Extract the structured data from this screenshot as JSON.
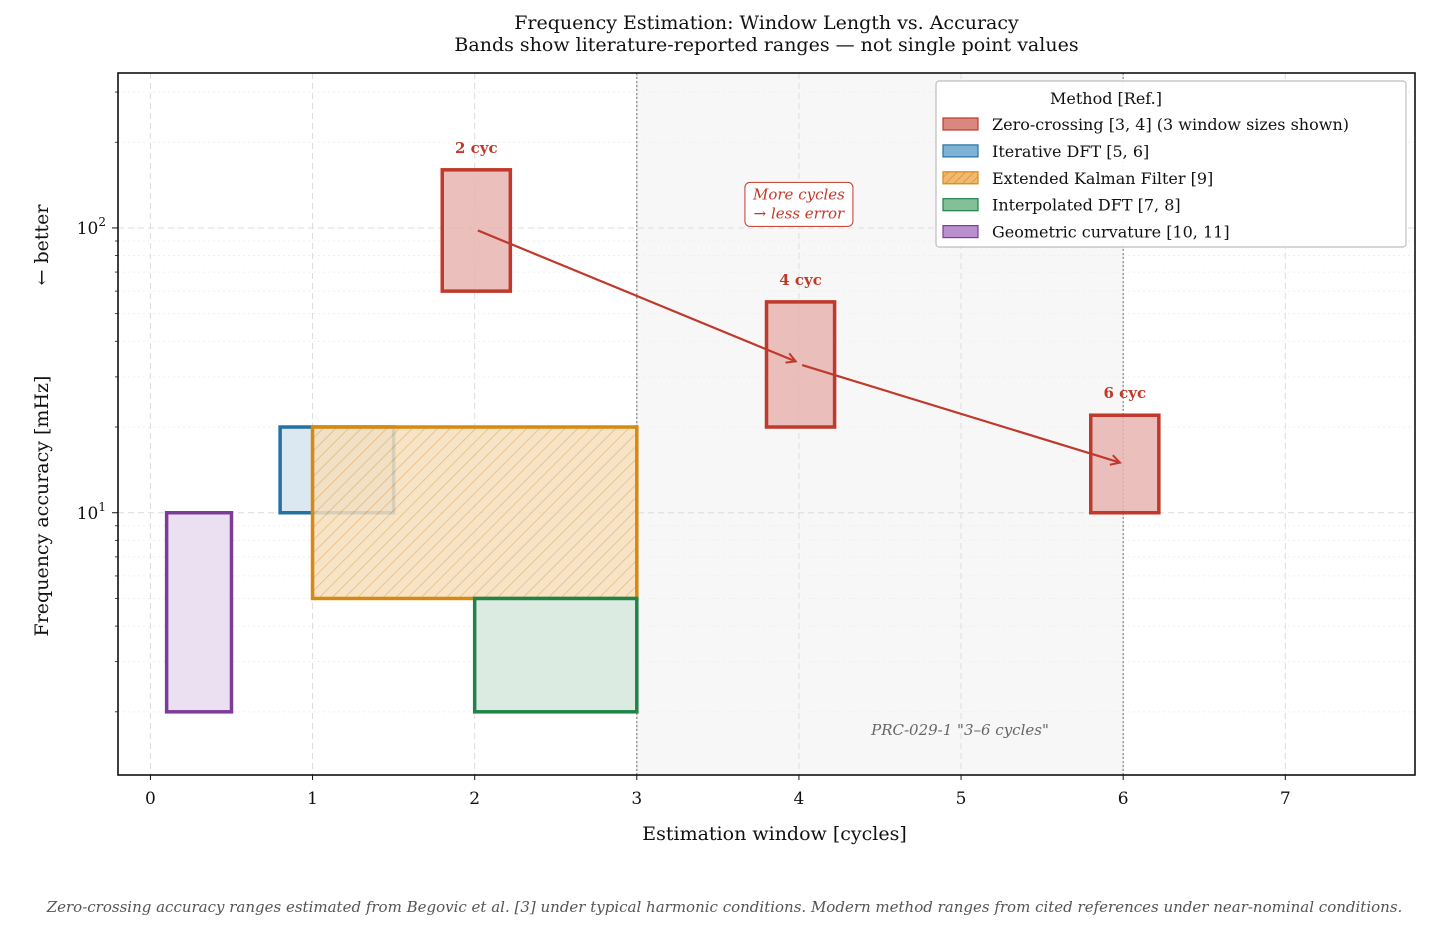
{
  "chart_data": {
    "type": "bar",
    "title": "Frequency Estimation: Window Length vs. Accuracy",
    "subtitle": "Bands show literature-reported ranges — not single point values",
    "xlabel": "Estimation window  [cycles]",
    "ylabel": "Frequency accuracy  [mHz]",
    "ylabel_hint": "←  better",
    "x_scale": "linear",
    "y_scale": "log",
    "xlim": [
      -0.2,
      7.8
    ],
    "ylim": [
      1.2,
      350
    ],
    "x_ticks": [
      0,
      1,
      2,
      3,
      4,
      5,
      6,
      7
    ],
    "y_ticks": [
      {
        "value": 10,
        "base": "10",
        "exp": "1"
      },
      {
        "value": 100,
        "base": "10",
        "exp": "2"
      }
    ],
    "grid": true,
    "legend_placement": "top-right",
    "legend_title": "Method  [Ref.]",
    "series": [
      {
        "name": "Zero-crossing  [3, 4]  (3 window sizes shown)",
        "color": "#c0392b",
        "fill": "#e6b4b0",
        "hatch": false,
        "bands": [
          {
            "x": [
              1.8,
              2.22
            ],
            "y": [
              60,
              160
            ],
            "label": "2 cyc"
          },
          {
            "x": [
              3.8,
              4.22
            ],
            "y": [
              20,
              55
            ],
            "label": "4 cyc"
          },
          {
            "x": [
              5.8,
              6.22
            ],
            "y": [
              10,
              22
            ],
            "label": "6 cyc"
          }
        ]
      },
      {
        "name": "Iterative DFT  [5, 6]",
        "color": "#2471a3",
        "fill": "#d6e4ee",
        "hatch": false,
        "bands": [
          {
            "x": [
              0.8,
              1.5
            ],
            "y": [
              10,
              20
            ]
          }
        ]
      },
      {
        "name": "Extended Kalman Filter  [9]",
        "color": "#d68910",
        "fill": "#f6dfbd",
        "hatch": true,
        "bands": [
          {
            "x": [
              1.0,
              3.0
            ],
            "y": [
              5,
              20
            ]
          }
        ]
      },
      {
        "name": "Interpolated DFT  [7, 8]",
        "color": "#1e8449",
        "fill": "#d5e8dd",
        "hatch": false,
        "bands": [
          {
            "x": [
              2.0,
              3.0
            ],
            "y": [
              2,
              5
            ]
          }
        ]
      },
      {
        "name": "Geometric curvature  [10, 11]",
        "color": "#7d3c98",
        "fill": "#e8dbee",
        "hatch": false,
        "bands": [
          {
            "x": [
              0.1,
              0.5
            ],
            "y": [
              2,
              10
            ]
          }
        ]
      }
    ],
    "trend_arrows": [
      {
        "from": [
          2.02,
          98
        ],
        "to": [
          3.98,
          34
        ]
      },
      {
        "from": [
          4.02,
          33
        ],
        "to": [
          5.98,
          15
        ]
      }
    ],
    "shaded_region": {
      "x": [
        3,
        6
      ],
      "label": "PRC-029-1  \"3–6 cycles\""
    },
    "annotation": {
      "lines": [
        "More cycles",
        "→ less error"
      ],
      "x": 4.0,
      "y": 120
    }
  },
  "footnote": "Zero-crossing accuracy ranges estimated from Begovic et al. [3] under typical harmonic conditions.  Modern method ranges from cited references under near-nominal conditions."
}
